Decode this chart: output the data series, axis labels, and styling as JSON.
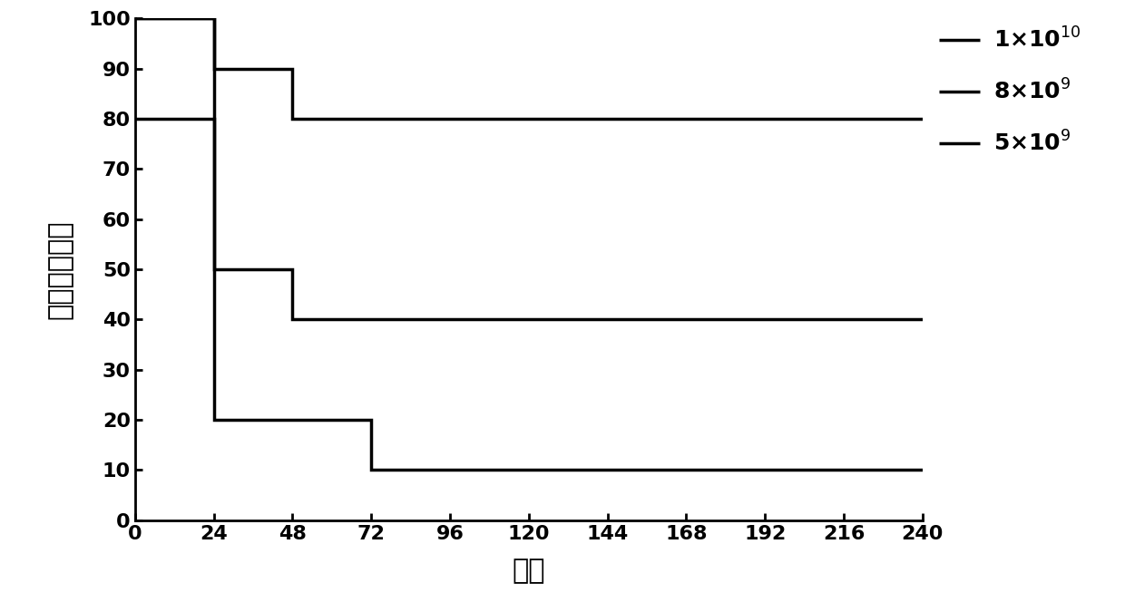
{
  "series": [
    {
      "x": [
        0,
        24,
        24,
        48,
        48,
        240
      ],
      "y": [
        100,
        100,
        90,
        90,
        80,
        80
      ],
      "linewidth": 2.5
    },
    {
      "x": [
        0,
        24,
        24,
        48,
        48,
        240
      ],
      "y": [
        80,
        80,
        50,
        50,
        40,
        40
      ],
      "linewidth": 2.5
    },
    {
      "x": [
        0,
        24,
        24,
        72,
        72,
        240
      ],
      "y": [
        100,
        100,
        20,
        20,
        10,
        10
      ],
      "linewidth": 2.5
    }
  ],
  "legend_labels": [
    "1×10$^{10}$",
    "8×10$^{9}$",
    "5×10$^{9}$"
  ],
  "xlabel": "时间",
  "ylabel": "百分比存活率",
  "xlim": [
    0,
    240
  ],
  "ylim": [
    0,
    100
  ],
  "xticks": [
    0,
    24,
    48,
    72,
    96,
    120,
    144,
    168,
    192,
    216,
    240
  ],
  "yticks": [
    0,
    10,
    20,
    30,
    40,
    50,
    60,
    70,
    80,
    90,
    100
  ],
  "color": "#000000",
  "background_color": "#ffffff",
  "tick_fontsize": 16,
  "label_fontsize": 22,
  "legend_fontsize": 18
}
